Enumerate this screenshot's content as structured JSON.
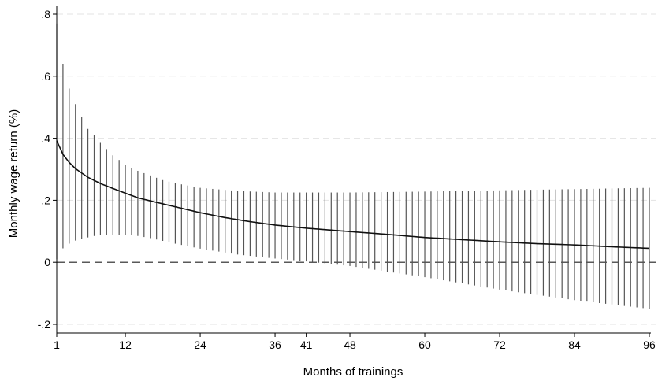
{
  "chart_data": {
    "type": "line",
    "title": "",
    "xlabel": "Months of trainings",
    "ylabel": "Monthly wage return (%)",
    "xlim": [
      1,
      96
    ],
    "ylim": [
      -0.2,
      0.8
    ],
    "x_ticks": [
      1,
      12,
      24,
      36,
      41,
      48,
      60,
      72,
      84,
      96
    ],
    "x_tick_labels": [
      "1",
      "12",
      "24",
      "36",
      "41",
      "48",
      "60",
      "72",
      "84",
      "96"
    ],
    "y_ticks": [
      -0.2,
      0,
      0.2,
      0.4,
      0.6,
      0.8
    ],
    "y_tick_labels": [
      "-.2",
      "0",
      ".2",
      ".4",
      ".6",
      ".8"
    ],
    "grid": "horizontal dashed at y ticks",
    "reference_line": {
      "y": 0,
      "style": "dashed"
    },
    "series": [
      {
        "kind": "point-estimate-curve",
        "x": [
          1,
          2,
          3,
          4,
          6,
          8,
          10,
          12,
          14,
          16,
          20,
          24,
          28,
          32,
          36,
          41,
          48,
          54,
          60,
          66,
          72,
          78,
          84,
          90,
          96
        ],
        "values": [
          0.392,
          0.348,
          0.322,
          0.302,
          0.274,
          0.254,
          0.238,
          0.223,
          0.208,
          0.198,
          0.179,
          0.16,
          0.144,
          0.131,
          0.12,
          0.11,
          0.099,
          0.09,
          0.08,
          0.073,
          0.066,
          0.06,
          0.056,
          0.05,
          0.045
        ]
      }
    ],
    "confidence_interval": {
      "kind": "vertical spikes, one per month 1-96",
      "x": [
        1,
        2,
        3,
        4,
        5,
        6,
        7,
        8,
        9,
        10,
        12,
        14,
        16,
        18,
        20,
        24,
        30,
        36,
        40,
        48,
        60,
        72,
        84,
        96
      ],
      "upper": [
        0.77,
        0.64,
        0.56,
        0.51,
        0.47,
        0.43,
        0.41,
        0.385,
        0.365,
        0.345,
        0.315,
        0.295,
        0.28,
        0.265,
        0.255,
        0.24,
        0.23,
        0.225,
        0.225,
        0.225,
        0.228,
        0.232,
        0.236,
        0.24
      ],
      "lower": [
        0.01,
        0.045,
        0.06,
        0.07,
        0.075,
        0.08,
        0.085,
        0.087,
        0.088,
        0.089,
        0.089,
        0.085,
        0.078,
        0.069,
        0.06,
        0.044,
        0.025,
        0.012,
        0.005,
        -0.012,
        -0.048,
        -0.088,
        -0.122,
        -0.15
      ]
    }
  }
}
